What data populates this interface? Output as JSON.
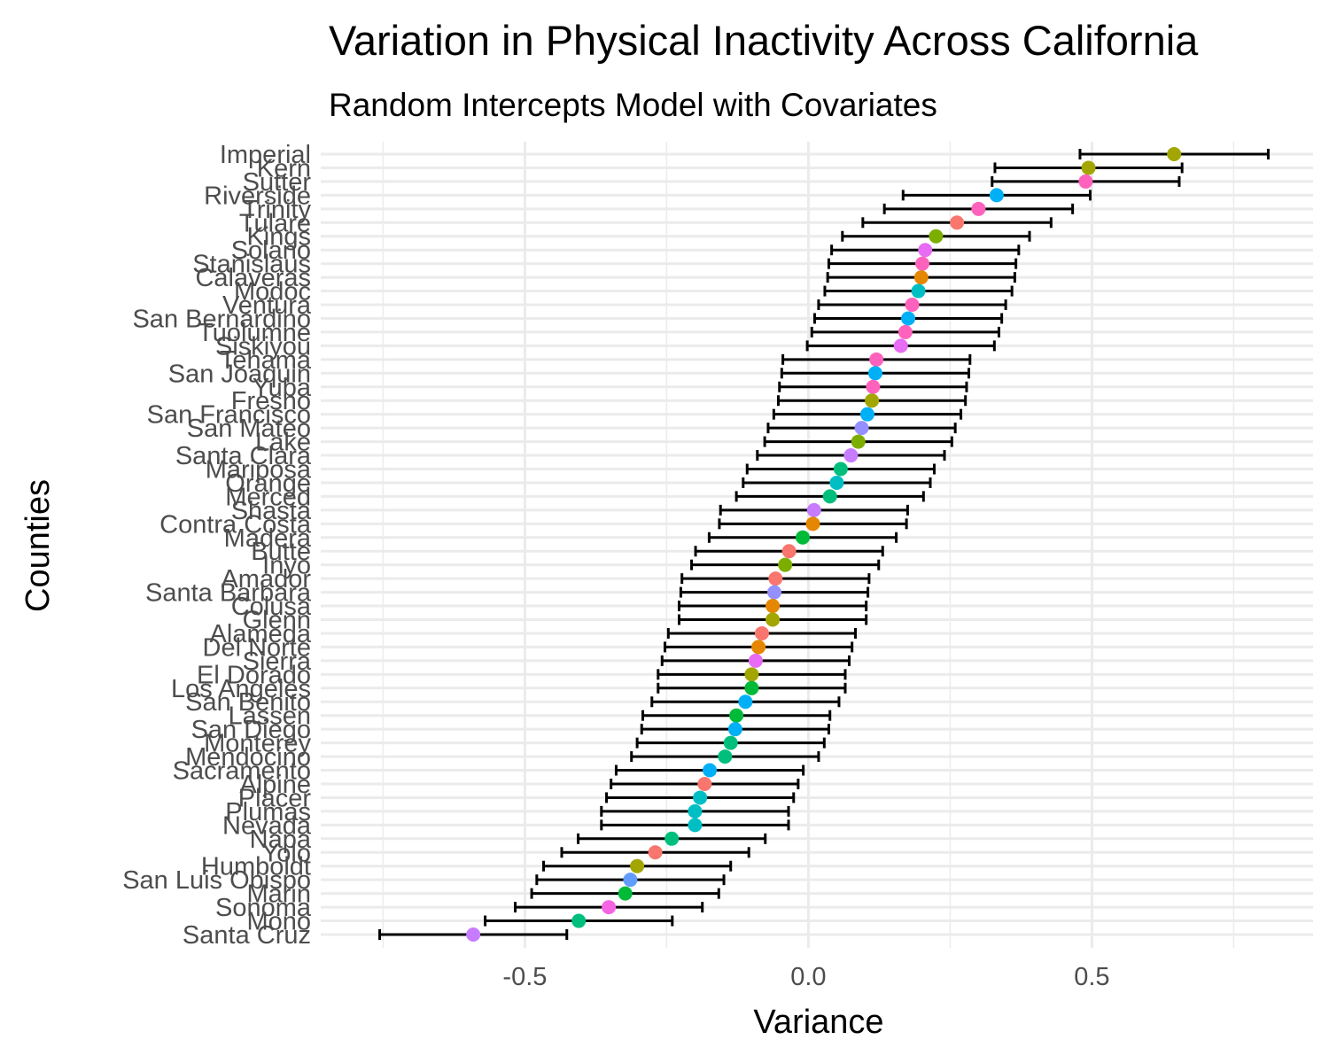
{
  "chart_data": {
    "type": "scatter",
    "subtype": "dot-with-error-bars",
    "title": "Variation in Physical Inactivity Across California",
    "subtitle": "Random Intercepts Model with Covariates",
    "xlabel": "Variance",
    "ylabel": "Counties",
    "xlim": [
      -0.86,
      0.89
    ],
    "xticks": [
      -0.5,
      0.0,
      0.5
    ],
    "xtick_labels": [
      "-0.5",
      "0.0",
      "0.5"
    ],
    "grid": true,
    "legend": "none",
    "points": [
      {
        "county": "Imperial",
        "estimate": 0.645,
        "lower": 0.479,
        "upper": 0.811,
        "color": "#A3A500"
      },
      {
        "county": "Kern",
        "estimate": 0.494,
        "lower": 0.329,
        "upper": 0.659,
        "color": "#A3A500"
      },
      {
        "county": "Sutter",
        "estimate": 0.489,
        "lower": 0.324,
        "upper": 0.654,
        "color": "#FF62BC"
      },
      {
        "county": "Riverside",
        "estimate": 0.332,
        "lower": 0.167,
        "upper": 0.497,
        "color": "#00B0F6"
      },
      {
        "county": "Trinity",
        "estimate": 0.3,
        "lower": 0.134,
        "upper": 0.466,
        "color": "#FF62BC"
      },
      {
        "county": "Tulare",
        "estimate": 0.262,
        "lower": 0.096,
        "upper": 0.428,
        "color": "#F8766D"
      },
      {
        "county": "Kings",
        "estimate": 0.225,
        "lower": 0.06,
        "upper": 0.39,
        "color": "#7CAE00"
      },
      {
        "county": "Solano",
        "estimate": 0.206,
        "lower": 0.041,
        "upper": 0.371,
        "color": "#E76BF3"
      },
      {
        "county": "Stanislaus",
        "estimate": 0.201,
        "lower": 0.036,
        "upper": 0.366,
        "color": "#FF62BC"
      },
      {
        "county": "Calaveras",
        "estimate": 0.199,
        "lower": 0.034,
        "upper": 0.364,
        "color": "#E58700"
      },
      {
        "county": "Modoc",
        "estimate": 0.194,
        "lower": 0.029,
        "upper": 0.359,
        "color": "#00BFC4"
      },
      {
        "county": "Ventura",
        "estimate": 0.183,
        "lower": 0.018,
        "upper": 0.348,
        "color": "#FF62BC"
      },
      {
        "county": "San Bernardino",
        "estimate": 0.176,
        "lower": 0.011,
        "upper": 0.341,
        "color": "#00B0F6"
      },
      {
        "county": "Tuolumne",
        "estimate": 0.171,
        "lower": 0.006,
        "upper": 0.336,
        "color": "#FF62BC"
      },
      {
        "county": "Siskiyou",
        "estimate": 0.163,
        "lower": -0.002,
        "upper": 0.328,
        "color": "#E76BF3"
      },
      {
        "county": "Tehama",
        "estimate": 0.12,
        "lower": -0.045,
        "upper": 0.285,
        "color": "#FF62BC"
      },
      {
        "county": "San Joaquin",
        "estimate": 0.118,
        "lower": -0.047,
        "upper": 0.283,
        "color": "#00B0F6"
      },
      {
        "county": "Yuba",
        "estimate": 0.114,
        "lower": -0.051,
        "upper": 0.279,
        "color": "#FF62BC"
      },
      {
        "county": "Fresno",
        "estimate": 0.112,
        "lower": -0.053,
        "upper": 0.277,
        "color": "#A3A500"
      },
      {
        "county": "San Francisco",
        "estimate": 0.104,
        "lower": -0.061,
        "upper": 0.269,
        "color": "#00B0F6"
      },
      {
        "county": "San Mateo",
        "estimate": 0.094,
        "lower": -0.071,
        "upper": 0.259,
        "color": "#9590FF"
      },
      {
        "county": "Lake",
        "estimate": 0.088,
        "lower": -0.077,
        "upper": 0.253,
        "color": "#7CAE00"
      },
      {
        "county": "Santa Clara",
        "estimate": 0.075,
        "lower": -0.09,
        "upper": 0.24,
        "color": "#C77CFF"
      },
      {
        "county": "Mariposa",
        "estimate": 0.057,
        "lower": -0.108,
        "upper": 0.222,
        "color": "#00BF7D"
      },
      {
        "county": "Orange",
        "estimate": 0.05,
        "lower": -0.115,
        "upper": 0.215,
        "color": "#00BFC4"
      },
      {
        "county": "Merced",
        "estimate": 0.038,
        "lower": -0.127,
        "upper": 0.203,
        "color": "#00BF7D"
      },
      {
        "county": "Shasta",
        "estimate": 0.01,
        "lower": -0.155,
        "upper": 0.175,
        "color": "#C77CFF"
      },
      {
        "county": "Contra Costa",
        "estimate": 0.008,
        "lower": -0.157,
        "upper": 0.173,
        "color": "#E58700"
      },
      {
        "county": "Madera",
        "estimate": -0.01,
        "lower": -0.175,
        "upper": 0.155,
        "color": "#00BA38"
      },
      {
        "county": "Butte",
        "estimate": -0.034,
        "lower": -0.199,
        "upper": 0.131,
        "color": "#F8766D"
      },
      {
        "county": "Inyo",
        "estimate": -0.041,
        "lower": -0.206,
        "upper": 0.124,
        "color": "#7CAE00"
      },
      {
        "county": "Amador",
        "estimate": -0.058,
        "lower": -0.223,
        "upper": 0.107,
        "color": "#F8766D"
      },
      {
        "county": "Santa Barbara",
        "estimate": -0.06,
        "lower": -0.225,
        "upper": 0.105,
        "color": "#9590FF"
      },
      {
        "county": "Colusa",
        "estimate": -0.063,
        "lower": -0.228,
        "upper": 0.102,
        "color": "#E58700"
      },
      {
        "county": "Glenn",
        "estimate": -0.063,
        "lower": -0.228,
        "upper": 0.102,
        "color": "#A3A500"
      },
      {
        "county": "Alameda",
        "estimate": -0.082,
        "lower": -0.247,
        "upper": 0.083,
        "color": "#F8766D"
      },
      {
        "county": "Del Norte",
        "estimate": -0.088,
        "lower": -0.253,
        "upper": 0.077,
        "color": "#E58700"
      },
      {
        "county": "Sierra",
        "estimate": -0.093,
        "lower": -0.258,
        "upper": 0.072,
        "color": "#E76BF3"
      },
      {
        "county": "El Dorado",
        "estimate": -0.1,
        "lower": -0.265,
        "upper": 0.065,
        "color": "#A3A500"
      },
      {
        "county": "Los Angeles",
        "estimate": -0.1,
        "lower": -0.265,
        "upper": 0.065,
        "color": "#00BA38"
      },
      {
        "county": "San Benito",
        "estimate": -0.111,
        "lower": -0.276,
        "upper": 0.054,
        "color": "#00B0F6"
      },
      {
        "county": "Lassen",
        "estimate": -0.127,
        "lower": -0.292,
        "upper": 0.038,
        "color": "#00BA38"
      },
      {
        "county": "San Diego",
        "estimate": -0.129,
        "lower": -0.294,
        "upper": 0.036,
        "color": "#00B0F6"
      },
      {
        "county": "Monterey",
        "estimate": -0.137,
        "lower": -0.302,
        "upper": 0.028,
        "color": "#00BF7D"
      },
      {
        "county": "Mendocino",
        "estimate": -0.147,
        "lower": -0.312,
        "upper": 0.018,
        "color": "#00BF7D"
      },
      {
        "county": "Sacramento",
        "estimate": -0.174,
        "lower": -0.339,
        "upper": -0.009,
        "color": "#00B0F6"
      },
      {
        "county": "Alpine",
        "estimate": -0.183,
        "lower": -0.348,
        "upper": -0.018,
        "color": "#F8766D"
      },
      {
        "county": "Placer",
        "estimate": -0.191,
        "lower": -0.356,
        "upper": -0.026,
        "color": "#00BFC4"
      },
      {
        "county": "Plumas",
        "estimate": -0.2,
        "lower": -0.365,
        "upper": -0.035,
        "color": "#00BFC4"
      },
      {
        "county": "Nevada",
        "estimate": -0.2,
        "lower": -0.365,
        "upper": -0.035,
        "color": "#00BFC4"
      },
      {
        "county": "Napa",
        "estimate": -0.241,
        "lower": -0.406,
        "upper": -0.076,
        "color": "#00BF7D"
      },
      {
        "county": "Yolo",
        "estimate": -0.27,
        "lower": -0.435,
        "upper": -0.105,
        "color": "#F8766D"
      },
      {
        "county": "Humboldt",
        "estimate": -0.302,
        "lower": -0.467,
        "upper": -0.137,
        "color": "#A3A500"
      },
      {
        "county": "San Luis Obispo",
        "estimate": -0.314,
        "lower": -0.479,
        "upper": -0.149,
        "color": "#619CFF"
      },
      {
        "county": "Marin",
        "estimate": -0.323,
        "lower": -0.488,
        "upper": -0.158,
        "color": "#00BA38"
      },
      {
        "county": "Sonoma",
        "estimate": -0.352,
        "lower": -0.517,
        "upper": -0.187,
        "color": "#F564E3"
      },
      {
        "county": "Mono",
        "estimate": -0.405,
        "lower": -0.57,
        "upper": -0.24,
        "color": "#00BF7D"
      },
      {
        "county": "Santa Cruz",
        "estimate": -0.591,
        "lower": -0.756,
        "upper": -0.426,
        "color": "#C77CFF"
      }
    ]
  }
}
